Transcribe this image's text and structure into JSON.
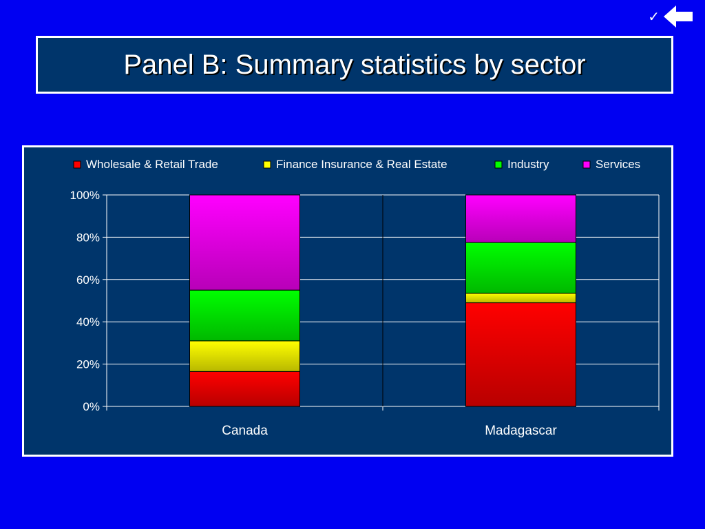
{
  "header": {
    "title": "Panel B: Summary statistics by sector"
  },
  "nav": {
    "check_icon": "checkmark-icon",
    "back_icon": "back-arrow-icon"
  },
  "chart_data": {
    "type": "bar",
    "stacked": "percent",
    "categories": [
      "Canada",
      "Madagascar"
    ],
    "series": [
      {
        "name": "Wholesale & Retail Trade",
        "color": "#ff0000",
        "values": [
          16.5,
          49
        ]
      },
      {
        "name": "Finance Insurance & Real Estate",
        "color": "#ffff00",
        "values": [
          14.5,
          4.5
        ]
      },
      {
        "name": "Industry",
        "color": "#00ff00",
        "values": [
          24,
          24
        ]
      },
      {
        "name": "Services",
        "color": "#ff00ff",
        "values": [
          45,
          22.5
        ]
      }
    ],
    "ylim": [
      0,
      100
    ],
    "yticks": [
      "0%",
      "20%",
      "40%",
      "60%",
      "80%",
      "100%"
    ],
    "grid": true,
    "legend": "top"
  }
}
